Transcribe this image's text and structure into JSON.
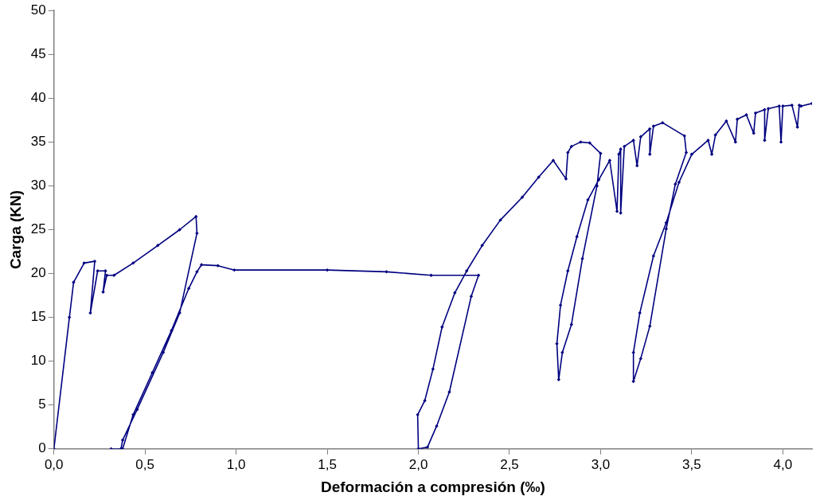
{
  "chart_data": {
    "type": "line",
    "xlabel": "Deformación a compresión (‰)",
    "ylabel": "Carga (KN)",
    "xlim": [
      0,
      4.16
    ],
    "ylim": [
      0,
      50
    ],
    "xticks": [
      {
        "value": 0,
        "label": "0,0"
      },
      {
        "value": 0.5,
        "label": "0,5"
      },
      {
        "value": 1,
        "label": "1,0"
      },
      {
        "value": 1.5,
        "label": "1,5"
      },
      {
        "value": 2,
        "label": "2,0"
      },
      {
        "value": 2.5,
        "label": "2,5"
      },
      {
        "value": 3,
        "label": "3,0"
      },
      {
        "value": 3.5,
        "label": "3,5"
      },
      {
        "value": 4,
        "label": "4,0"
      }
    ],
    "yticks": [
      0,
      5,
      10,
      15,
      20,
      25,
      30,
      35,
      40,
      45,
      50
    ],
    "grid": false,
    "legend": false,
    "marker": "diamond",
    "line_style": "solid",
    "series": [
      {
        "color": "#000080",
        "x": [
          0,
          0.085,
          0.108,
          0.166,
          0.224,
          0.2,
          0.24,
          0.283,
          0.27,
          0.29,
          0.33,
          0.435,
          0.57,
          0.69,
          0.78,
          0.785,
          0.69,
          0.6,
          0.457,
          0.377,
          0.368,
          0.314,
          0.377,
          0.435,
          0.54,
          0.645,
          0.74,
          0.785,
          0.81,
          0.9,
          0.99,
          1.5,
          1.825,
          2.07,
          2.33,
          2.29,
          2.17,
          2.1,
          2.05,
          2.0,
          1.996,
          2.035,
          2.08,
          2.13,
          2.2,
          2.265,
          2.35,
          2.45,
          2.57,
          2.66,
          2.74,
          2.81,
          2.82,
          2.84,
          2.89,
          2.94,
          3.0,
          2.98,
          2.9,
          2.84,
          2.79,
          2.77,
          2.76,
          2.78,
          2.82,
          2.87,
          2.93,
          2.99,
          3.05,
          3.09,
          3.1,
          3.11,
          3.11,
          3.13,
          3.18,
          3.2,
          3.22,
          3.27,
          3.27,
          3.29,
          3.34,
          3.46,
          3.47,
          3.41,
          3.36,
          3.27,
          3.22,
          3.18,
          3.18,
          3.215,
          3.29,
          3.36,
          3.43,
          3.5,
          3.59,
          3.61,
          3.63,
          3.69,
          3.74,
          3.75,
          3.8,
          3.84,
          3.85,
          3.9,
          3.9,
          3.92,
          3.98,
          3.99,
          4.0,
          4.05,
          4.08,
          4.09,
          4.1,
          4.16
        ],
        "values": [
          0,
          15.0,
          19.0,
          21.2,
          21.4,
          15.5,
          20.3,
          20.3,
          17.9,
          19.8,
          19.8,
          21.2,
          23.2,
          25.0,
          26.5,
          24.6,
          15.5,
          11.0,
          4.5,
          1.0,
          0,
          0,
          0,
          3.9,
          8.7,
          13.5,
          18.3,
          20.2,
          21.0,
          20.9,
          20.4,
          20.4,
          20.2,
          19.8,
          19.8,
          17.4,
          6.5,
          2.6,
          0.2,
          0,
          3.9,
          5.5,
          9.1,
          13.9,
          17.8,
          20.3,
          23.2,
          26.1,
          28.7,
          31.0,
          32.9,
          30.8,
          33.8,
          34.5,
          35.0,
          34.9,
          33.7,
          30.0,
          21.7,
          14.2,
          11.0,
          7.9,
          12.0,
          16.4,
          20.3,
          24.2,
          28.4,
          30.7,
          32.9,
          27.1,
          33.6,
          34.2,
          26.9,
          34.5,
          35.2,
          32.3,
          35.6,
          36.5,
          33.6,
          36.8,
          37.2,
          35.7,
          33.8,
          30.2,
          25.1,
          14.0,
          10.3,
          7.7,
          11.0,
          15.5,
          22.0,
          25.8,
          30.4,
          33.6,
          35.2,
          33.6,
          35.8,
          37.4,
          35.0,
          37.6,
          38.1,
          36.0,
          38.3,
          38.7,
          35.2,
          38.8,
          39.1,
          35.0,
          39.1,
          39.2,
          36.7,
          39.2,
          39.1,
          39.4
        ]
      }
    ]
  }
}
